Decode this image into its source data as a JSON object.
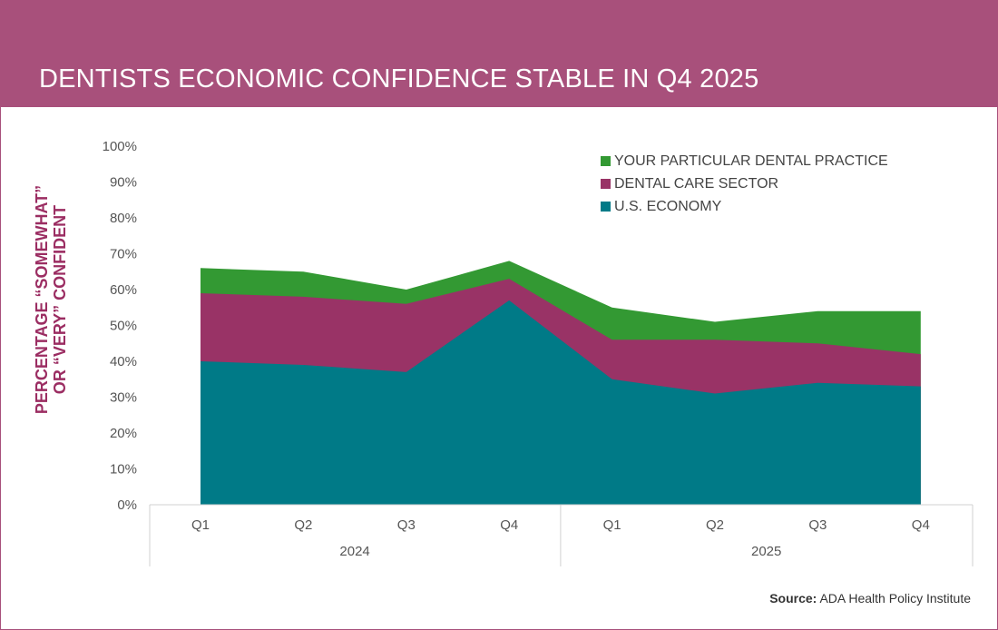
{
  "header": {
    "title": "DENTISTS ECONOMIC CONFIDENCE STABLE IN Q4 2025"
  },
  "source": {
    "label": "Source:",
    "text": "ADA Health Policy Institute"
  },
  "chart_data": {
    "type": "area",
    "title": "DENTISTS ECONOMIC CONFIDENCE STABLE IN Q4 2025",
    "ylabel_lines": [
      "PERCENTAGE “SOMEWHAT”",
      "OR “VERY” CONFIDENT"
    ],
    "categories": [
      "Q1",
      "Q2",
      "Q3",
      "Q4",
      "Q1",
      "Q2",
      "Q3",
      "Q4"
    ],
    "groups": [
      {
        "label": "2024",
        "count": 4
      },
      {
        "label": "2025",
        "count": 4
      }
    ],
    "yticks": [
      "0%",
      "10%",
      "20%",
      "30%",
      "40%",
      "50%",
      "60%",
      "70%",
      "80%",
      "90%",
      "100%"
    ],
    "ylim": [
      0,
      100
    ],
    "grid": false,
    "legend_position": "top-right",
    "series": [
      {
        "name": "YOUR PARTICULAR DENTAL PRACTICE",
        "color": "#339933",
        "values": [
          66,
          65,
          60,
          68,
          55,
          51,
          54,
          54
        ]
      },
      {
        "name": "DENTAL CARE SECTOR",
        "color": "#993366",
        "values": [
          59,
          58,
          56,
          63,
          46,
          46,
          45,
          42
        ]
      },
      {
        "name": "U.S. ECONOMY",
        "color": "#007a87",
        "values": [
          40,
          39,
          37,
          57,
          35,
          31,
          34,
          33
        ]
      }
    ]
  }
}
